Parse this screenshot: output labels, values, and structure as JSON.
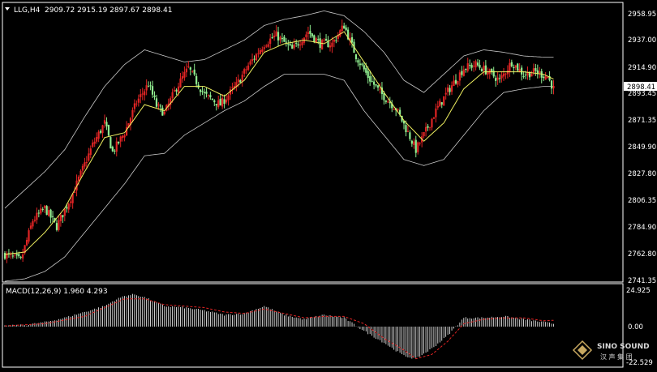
{
  "colors": {
    "background": "#000000",
    "border": "#ffffff",
    "bull": "#e02424",
    "bear": "#90ee90",
    "bands": "#c8c8c8",
    "ma": "#f0f060",
    "macd_hist": "#ffffff",
    "macd_signal": "#e02424",
    "price_tag_bg": "#ffffff",
    "price_tag_text": "#000000"
  },
  "header": {
    "symbol_label": "LLG,H4",
    "ohlc_label": "2909.72 2915.19 2897.67 2898.41"
  },
  "macd_header": {
    "label": "MACD(12,26,9) 1.960 4.293"
  },
  "watermark": {
    "line1": "SINO SOUND",
    "line2": "汉 声 集 团",
    "icon": "diamond-logo-icon"
  },
  "price_tag": "2898.41",
  "chart_data": [
    {
      "type": "candlestick",
      "title": "LLG,H4",
      "ylim": [
        2741.35,
        2958.95
      ],
      "y_ticks": [
        "2958.95",
        "2937.00",
        "2914.90",
        "2893.45",
        "2871.35",
        "2849.90",
        "2827.80",
        "2806.35",
        "2784.90",
        "2762.80",
        "2741.35"
      ],
      "grid": false,
      "last_price": 2898.41,
      "indicators": [
        "Bollinger Bands",
        "Moving Average"
      ],
      "close_path": [
        [
          0,
          2762
        ],
        [
          8,
          2757
        ],
        [
          14,
          2790
        ],
        [
          20,
          2800
        ],
        [
          26,
          2785
        ],
        [
          34,
          2812
        ],
        [
          44,
          2852
        ],
        [
          50,
          2870
        ],
        [
          54,
          2846
        ],
        [
          60,
          2862
        ],
        [
          66,
          2887
        ],
        [
          72,
          2902
        ],
        [
          76,
          2884
        ],
        [
          80,
          2878
        ],
        [
          86,
          2899
        ],
        [
          92,
          2915
        ],
        [
          100,
          2893
        ],
        [
          108,
          2885
        ],
        [
          116,
          2901
        ],
        [
          122,
          2917
        ],
        [
          130,
          2935
        ],
        [
          136,
          2942
        ],
        [
          144,
          2930
        ],
        [
          152,
          2945
        ],
        [
          158,
          2935
        ],
        [
          164,
          2935
        ],
        [
          170,
          2950
        ],
        [
          176,
          2925
        ],
        [
          182,
          2908
        ],
        [
          188,
          2895
        ],
        [
          196,
          2882
        ],
        [
          202,
          2862
        ],
        [
          206,
          2848
        ],
        [
          210,
          2860
        ],
        [
          216,
          2880
        ],
        [
          222,
          2896
        ],
        [
          230,
          2915
        ],
        [
          236,
          2918
        ],
        [
          242,
          2912
        ],
        [
          248,
          2905
        ],
        [
          254,
          2920
        ],
        [
          260,
          2910
        ],
        [
          266,
          2912
        ],
        [
          272,
          2908
        ],
        [
          275,
          2898
        ]
      ],
      "band_upper_path": [
        [
          0,
          2800
        ],
        [
          10,
          2815
        ],
        [
          20,
          2830
        ],
        [
          30,
          2848
        ],
        [
          40,
          2875
        ],
        [
          50,
          2900
        ],
        [
          60,
          2918
        ],
        [
          70,
          2930
        ],
        [
          80,
          2925
        ],
        [
          90,
          2920
        ],
        [
          100,
          2922
        ],
        [
          110,
          2930
        ],
        [
          120,
          2938
        ],
        [
          130,
          2950
        ],
        [
          140,
          2955
        ],
        [
          150,
          2958
        ],
        [
          160,
          2962
        ],
        [
          170,
          2958
        ],
        [
          180,
          2945
        ],
        [
          190,
          2928
        ],
        [
          200,
          2905
        ],
        [
          210,
          2895
        ],
        [
          220,
          2910
        ],
        [
          230,
          2925
        ],
        [
          240,
          2930
        ],
        [
          250,
          2928
        ],
        [
          260,
          2925
        ],
        [
          270,
          2924
        ],
        [
          275,
          2924
        ]
      ],
      "band_lower_path": [
        [
          0,
          2740
        ],
        [
          10,
          2742
        ],
        [
          20,
          2748
        ],
        [
          30,
          2760
        ],
        [
          40,
          2780
        ],
        [
          50,
          2800
        ],
        [
          60,
          2820
        ],
        [
          70,
          2843
        ],
        [
          80,
          2845
        ],
        [
          90,
          2860
        ],
        [
          100,
          2870
        ],
        [
          110,
          2880
        ],
        [
          120,
          2888
        ],
        [
          130,
          2900
        ],
        [
          140,
          2910
        ],
        [
          150,
          2910
        ],
        [
          160,
          2910
        ],
        [
          170,
          2905
        ],
        [
          180,
          2880
        ],
        [
          190,
          2860
        ],
        [
          200,
          2840
        ],
        [
          210,
          2835
        ],
        [
          220,
          2840
        ],
        [
          230,
          2860
        ],
        [
          240,
          2880
        ],
        [
          250,
          2895
        ],
        [
          260,
          2898
        ],
        [
          270,
          2900
        ],
        [
          275,
          2900
        ]
      ],
      "ma_path": [
        [
          0,
          2762
        ],
        [
          10,
          2764
        ],
        [
          20,
          2780
        ],
        [
          30,
          2800
        ],
        [
          40,
          2830
        ],
        [
          50,
          2858
        ],
        [
          60,
          2862
        ],
        [
          70,
          2885
        ],
        [
          80,
          2880
        ],
        [
          90,
          2900
        ],
        [
          100,
          2900
        ],
        [
          110,
          2892
        ],
        [
          120,
          2905
        ],
        [
          130,
          2928
        ],
        [
          140,
          2935
        ],
        [
          150,
          2938
        ],
        [
          160,
          2935
        ],
        [
          170,
          2945
        ],
        [
          180,
          2920
        ],
        [
          190,
          2895
        ],
        [
          200,
          2872
        ],
        [
          210,
          2855
        ],
        [
          220,
          2870
        ],
        [
          230,
          2898
        ],
        [
          240,
          2912
        ],
        [
          250,
          2912
        ],
        [
          260,
          2912
        ],
        [
          270,
          2910
        ],
        [
          275,
          2906
        ]
      ]
    },
    {
      "type": "bar",
      "title": "MACD(12,26,9)",
      "macd_value": 1.96,
      "signal_value": 4.293,
      "ylim": [
        -22.529,
        24.925
      ],
      "y_ticks": [
        "24.925",
        "0.00",
        "-22.529"
      ],
      "histogram_path": [
        [
          0,
          0.5
        ],
        [
          10,
          1
        ],
        [
          20,
          3
        ],
        [
          30,
          6
        ],
        [
          40,
          10
        ],
        [
          50,
          14
        ],
        [
          55,
          18
        ],
        [
          60,
          21
        ],
        [
          65,
          22
        ],
        [
          70,
          20
        ],
        [
          80,
          14
        ],
        [
          90,
          13
        ],
        [
          100,
          11
        ],
        [
          110,
          8
        ],
        [
          120,
          9
        ],
        [
          130,
          14
        ],
        [
          140,
          8
        ],
        [
          150,
          5
        ],
        [
          160,
          8
        ],
        [
          170,
          6
        ],
        [
          180,
          -3
        ],
        [
          190,
          -11
        ],
        [
          200,
          -20
        ],
        [
          206,
          -22
        ],
        [
          214,
          -15
        ],
        [
          222,
          -6
        ],
        [
          230,
          6
        ],
        [
          240,
          6
        ],
        [
          250,
          7
        ],
        [
          260,
          5
        ],
        [
          270,
          3
        ],
        [
          275,
          2
        ]
      ],
      "signal_path": [
        [
          0,
          0.5
        ],
        [
          20,
          2
        ],
        [
          40,
          7
        ],
        [
          60,
          19
        ],
        [
          70,
          19
        ],
        [
          80,
          15
        ],
        [
          90,
          14
        ],
        [
          100,
          13
        ],
        [
          110,
          10
        ],
        [
          120,
          9
        ],
        [
          130,
          12
        ],
        [
          140,
          9
        ],
        [
          150,
          6
        ],
        [
          160,
          7
        ],
        [
          170,
          7
        ],
        [
          180,
          2
        ],
        [
          190,
          -8
        ],
        [
          200,
          -16
        ],
        [
          206,
          -22
        ],
        [
          214,
          -19
        ],
        [
          222,
          -10
        ],
        [
          230,
          2
        ],
        [
          240,
          5
        ],
        [
          250,
          6
        ],
        [
          260,
          6
        ],
        [
          270,
          4
        ],
        [
          275,
          4.3
        ]
      ]
    }
  ]
}
